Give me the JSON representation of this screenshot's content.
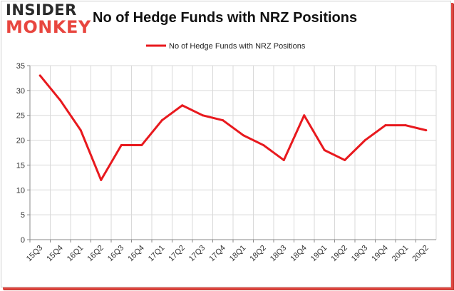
{
  "logo": {
    "line1": "INSIDER",
    "line2": "MONKEY"
  },
  "colors": {
    "series": "#e8191e",
    "grid": "#d9d9d9",
    "axis": "#888888"
  },
  "chart_data": {
    "type": "line",
    "title": "No of Hedge Funds with NRZ Positions",
    "xlabel": "",
    "ylabel": "",
    "ylim": [
      0,
      35
    ],
    "yticks": [
      0,
      5,
      10,
      15,
      20,
      25,
      30,
      35
    ],
    "grid": true,
    "legend": "top-center",
    "categories": [
      "15Q3",
      "15Q4",
      "16Q1",
      "16Q2",
      "16Q3",
      "16Q4",
      "17Q1",
      "17Q2",
      "17Q3",
      "17Q4",
      "18Q1",
      "18Q2",
      "18Q3",
      "18Q4",
      "19Q1",
      "19Q2",
      "19Q3",
      "19Q4",
      "20Q1",
      "20Q2"
    ],
    "series": [
      {
        "name": "No of Hedge Funds with NRZ Positions",
        "values": [
          33,
          28,
          22,
          12,
          19,
          19,
          24,
          27,
          25,
          24,
          21,
          19,
          16,
          25,
          18,
          16,
          20,
          23,
          23,
          22
        ]
      }
    ]
  }
}
